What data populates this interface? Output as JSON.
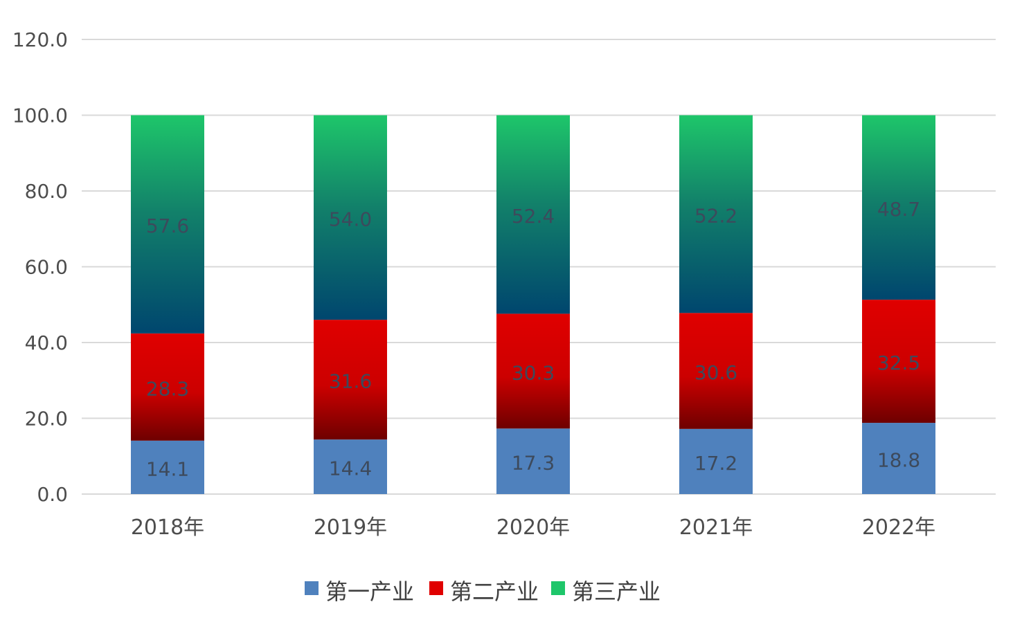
{
  "chart_data": {
    "type": "bar",
    "stacked": true,
    "categories": [
      "2018年",
      "2019年",
      "2020年",
      "2021年",
      "2022年"
    ],
    "series": [
      {
        "name": "第一产业",
        "values": [
          14.1,
          14.4,
          17.3,
          17.2,
          18.8
        ],
        "color": "#4f81bd"
      },
      {
        "name": "第二产业",
        "values": [
          28.3,
          31.6,
          30.3,
          30.6,
          32.5
        ],
        "color": "#e00000",
        "color_dark": "#6e0000"
      },
      {
        "name": "第三产业",
        "values": [
          57.6,
          54.0,
          52.4,
          52.2,
          48.7
        ],
        "color": "#1ec66a",
        "color_dark": "#00466e"
      }
    ],
    "data_labels": [
      [
        "14.1",
        "14.4",
        "17.3",
        "17.2",
        "18.8"
      ],
      [
        "28.3",
        "31.6",
        "30.3",
        "30.6",
        "32.5"
      ],
      [
        "57.6",
        "54.0",
        "52.4",
        "52.2",
        "48.7"
      ]
    ],
    "y_ticks": [
      "0.0",
      "20.0",
      "40.0",
      "60.0",
      "80.0",
      "100.0",
      "120.0"
    ],
    "ylim": [
      0,
      120
    ],
    "grid": true,
    "legend_position": "bottom",
    "title": "",
    "xlabel": "",
    "ylabel": ""
  }
}
